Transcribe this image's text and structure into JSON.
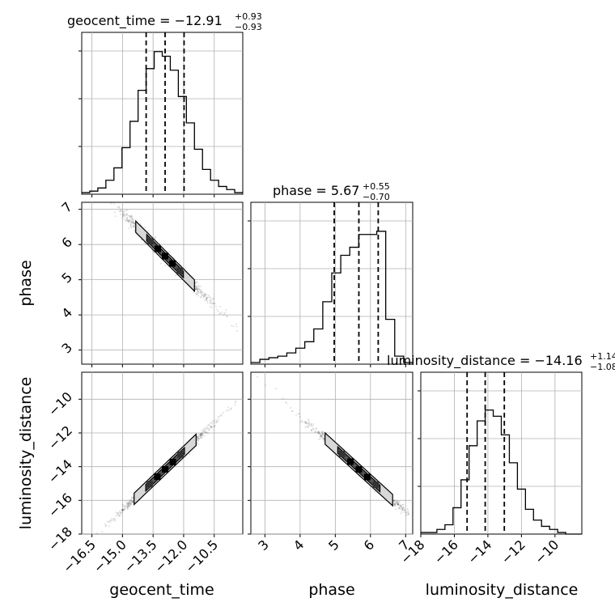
{
  "chart_data": {
    "type": "corner",
    "parameters": [
      "geocent_time",
      "phase",
      "luminosity_distance"
    ],
    "titles": [
      {
        "param": "geocent_time",
        "text": "geocent_time = −12.91",
        "plus": "+0.93",
        "minus": "−0.93"
      },
      {
        "param": "phase",
        "text": "phase = 5.67",
        "plus": "+0.55",
        "minus": "−0.70"
      },
      {
        "param": "luminosity_distance",
        "text": "luminosity_distance = −14.16",
        "plus": "+1.14",
        "minus": "−1.08"
      }
    ],
    "ranges": {
      "geocent_time": [
        -17.0,
        -9.1
      ],
      "phase": [
        2.6,
        7.2
      ],
      "luminosity_distance": [
        -18.0,
        -8.4
      ]
    },
    "ticks": {
      "geocent_time": {
        "values": [
          -16.5,
          -15.0,
          -13.5,
          -12.0,
          -10.5
        ],
        "labels": [
          "−16.5",
          "−15.0",
          "−13.5",
          "−12.0",
          "−10.5"
        ]
      },
      "phase": {
        "values": [
          3,
          4,
          5,
          6,
          7
        ],
        "labels": [
          "3",
          "4",
          "5",
          "6",
          "7"
        ]
      },
      "luminosity_distance_y": {
        "values": [
          -18,
          -16,
          -14,
          -12,
          -10
        ],
        "labels": [
          "−18",
          "−16",
          "−14",
          "−12",
          "−10"
        ]
      },
      "luminosity_distance_x": {
        "values": [
          -18,
          -16,
          -14,
          -12,
          -10
        ],
        "labels": [
          "−18",
          "−16",
          "−14",
          "−12",
          "−10"
        ]
      },
      "phase_y": {
        "values": [
          3,
          4,
          5,
          6,
          7
        ],
        "labels": [
          "3",
          "4",
          "5",
          "6",
          "7"
        ]
      }
    },
    "quantile_lines": {
      "geocent_time": [
        -13.84,
        -12.91,
        -11.98
      ],
      "phase": [
        4.97,
        5.67,
        6.22
      ],
      "luminosity_distance": [
        -15.24,
        -14.16,
        -13.02
      ]
    },
    "histograms": {
      "geocent_time": [
        0.01,
        0.02,
        0.04,
        0.09,
        0.17,
        0.3,
        0.47,
        0.67,
        0.81,
        0.92,
        0.89,
        0.8,
        0.63,
        0.46,
        0.29,
        0.16,
        0.09,
        0.05,
        0.03,
        0.01
      ],
      "phase": [
        0.01,
        0.03,
        0.04,
        0.05,
        0.07,
        0.1,
        0.14,
        0.22,
        0.39,
        0.57,
        0.68,
        0.73,
        0.81,
        0.81,
        0.83,
        0.28,
        0.05,
        0.01
      ],
      "luminosity_distance": [
        0.01,
        0.01,
        0.03,
        0.06,
        0.17,
        0.35,
        0.57,
        0.73,
        0.8,
        0.76,
        0.64,
        0.46,
        0.29,
        0.16,
        0.09,
        0.05,
        0.03,
        0.01,
        0.0,
        0.0
      ]
    },
    "xlabel": [
      "geocent_time",
      "phase",
      "luminosity_distance"
    ],
    "ylabel": [
      "phase",
      "luminosity_distance"
    ],
    "grid": true
  }
}
